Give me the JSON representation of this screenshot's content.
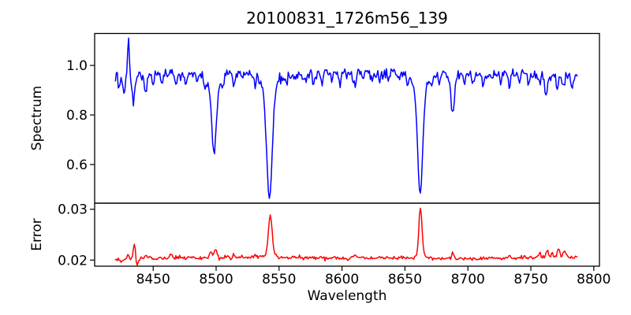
{
  "figure": {
    "title": "20100831_1726m56_139",
    "background_color": "#ffffff",
    "text_color": "#000000",
    "axis_color": "#000000"
  },
  "chart_data": [
    {
      "id": "spectrum-panel",
      "type": "line",
      "series_name": "Spectrum",
      "line_color": "#0000ff",
      "ylabel": "Spectrum",
      "xlim": [
        8403.5,
        8804.5
      ],
      "ylim": [
        0.444,
        1.129
      ],
      "yticks": [
        {
          "value": 1.0,
          "label": "1.0"
        },
        {
          "value": 0.8,
          "label": "0.8"
        },
        {
          "value": 0.6,
          "label": "0.6"
        }
      ],
      "x_start": 8420,
      "x_end": 8787,
      "x_step": 0.75,
      "continuum": [
        [
          8420,
          0.945
        ],
        [
          8442,
          0.958
        ],
        [
          8475,
          0.962
        ],
        [
          8520,
          0.968
        ],
        [
          8558,
          0.962
        ],
        [
          8600,
          0.972
        ],
        [
          8645,
          0.972
        ],
        [
          8700,
          0.958
        ],
        [
          8730,
          0.968
        ],
        [
          8762,
          0.96
        ],
        [
          8787,
          0.945
        ]
      ],
      "absorption_lines": [
        [
          8423,
          0.04,
          0.7
        ],
        [
          8427,
          0.05,
          0.9
        ],
        [
          8434.5,
          0.09,
          1.1
        ],
        [
          8444,
          0.07,
          0.9
        ],
        [
          8450,
          0.03,
          0.7
        ],
        [
          8457,
          0.04,
          0.7
        ],
        [
          8468,
          0.05,
          0.9
        ],
        [
          8476,
          0.035,
          0.7
        ],
        [
          8485,
          0.03,
          0.7
        ],
        [
          8491,
          0.04,
          0.8
        ],
        [
          8498.3,
          0.26,
          1.8
        ],
        [
          8498.3,
          0.05,
          5
        ],
        [
          8505,
          0.04,
          0.8
        ],
        [
          8514,
          0.05,
          0.9
        ],
        [
          8521,
          0.035,
          0.7
        ],
        [
          8531,
          0.05,
          0.9
        ],
        [
          8542.3,
          0.44,
          2.2
        ],
        [
          8542.3,
          0.055,
          6
        ],
        [
          8556,
          0.04,
          0.8
        ],
        [
          8563,
          0.03,
          0.7
        ],
        [
          8571,
          0.035,
          0.7
        ],
        [
          8577,
          0.03,
          0.7
        ],
        [
          8584,
          0.055,
          0.9
        ],
        [
          8592,
          0.035,
          0.7
        ],
        [
          8598,
          0.045,
          0.8
        ],
        [
          8604,
          0.03,
          0.7
        ],
        [
          8610,
          0.065,
          1.0
        ],
        [
          8617,
          0.035,
          0.7
        ],
        [
          8624,
          0.045,
          0.8
        ],
        [
          8630,
          0.03,
          0.7
        ],
        [
          8637,
          0.04,
          0.8
        ],
        [
          8645,
          0.035,
          0.7
        ],
        [
          8652,
          0.03,
          0.7
        ],
        [
          8662.1,
          0.435,
          2.0
        ],
        [
          8662.1,
          0.055,
          5.5
        ],
        [
          8671,
          0.04,
          0.8
        ],
        [
          8677,
          0.035,
          0.7
        ],
        [
          8688,
          0.15,
          1.3
        ],
        [
          8697,
          0.04,
          0.7
        ],
        [
          8704,
          0.03,
          0.7
        ],
        [
          8712,
          0.045,
          0.8
        ],
        [
          8719,
          0.03,
          0.7
        ],
        [
          8726,
          0.035,
          0.7
        ],
        [
          8733,
          0.055,
          1.0
        ],
        [
          8741,
          0.04,
          0.8
        ],
        [
          8748,
          0.03,
          0.7
        ],
        [
          8757,
          0.05,
          0.9
        ],
        [
          8762,
          0.08,
          1.1
        ],
        [
          8771,
          0.045,
          0.9
        ],
        [
          8776,
          0.04,
          0.8
        ],
        [
          8783,
          0.05,
          0.9
        ]
      ],
      "emission_spikes": [
        [
          8430.2,
          0.145,
          0.7
        ]
      ],
      "noise_sigma": 0.0115,
      "noise_seed": 13
    },
    {
      "id": "error-panel",
      "type": "line",
      "series_name": "Error",
      "line_color": "#ff0000",
      "xlabel": "Wavelength",
      "ylabel": "Error",
      "xlim": [
        8403.5,
        8804.5
      ],
      "ylim": [
        0.0188,
        0.0312
      ],
      "yticks": [
        {
          "value": 0.03,
          "label": "0.03"
        },
        {
          "value": 0.02,
          "label": "0.02"
        }
      ],
      "xticks": [
        {
          "value": 8450,
          "label": "8450"
        },
        {
          "value": 8500,
          "label": "8500"
        },
        {
          "value": 8550,
          "label": "8550"
        },
        {
          "value": 8600,
          "label": "8600"
        },
        {
          "value": 8650,
          "label": "8650"
        },
        {
          "value": 8700,
          "label": "8700"
        },
        {
          "value": 8750,
          "label": "8750"
        },
        {
          "value": 8800,
          "label": "8800"
        }
      ],
      "x_start": 8420,
      "x_end": 8787,
      "x_step": 0.75,
      "baseline": [
        [
          8420,
          0.02
        ],
        [
          8448,
          0.0204
        ],
        [
          8520,
          0.0205
        ],
        [
          8600,
          0.0204
        ],
        [
          8660,
          0.0204
        ],
        [
          8700,
          0.0203
        ],
        [
          8735,
          0.0204
        ],
        [
          8770,
          0.0206
        ],
        [
          8787,
          0.0206
        ]
      ],
      "peaks": [
        [
          8430,
          0.0008,
          0.8
        ],
        [
          8435,
          0.0031,
          0.8
        ],
        [
          8444,
          0.0006,
          0.8
        ],
        [
          8464,
          0.0009,
          0.9
        ],
        [
          8496,
          0.0012,
          0.9
        ],
        [
          8499.5,
          0.0019,
          1.0
        ],
        [
          8514,
          0.0004,
          0.8
        ],
        [
          8531,
          0.0007,
          0.9
        ],
        [
          8543,
          0.0075,
          1.4
        ],
        [
          8543,
          0.001,
          3.5
        ],
        [
          8584,
          0.0004,
          0.8
        ],
        [
          8610,
          0.0006,
          0.9
        ],
        [
          8662.3,
          0.0092,
          1.2
        ],
        [
          8662.3,
          0.0008,
          3.0
        ],
        [
          8688,
          0.0013,
          0.9
        ],
        [
          8733,
          0.0005,
          0.9
        ],
        [
          8745,
          0.0004,
          0.8
        ],
        [
          8757,
          0.0009,
          1.0
        ],
        [
          8763,
          0.0013,
          1.0
        ],
        [
          8767,
          0.0009,
          0.8
        ],
        [
          8772,
          0.0016,
          1.0
        ],
        [
          8777,
          0.0009,
          1.4
        ]
      ],
      "dips": [
        [
          8425,
          0.0004,
          0.8
        ],
        [
          8437.5,
          0.001,
          0.9
        ]
      ],
      "noise_sigma": 0.00018,
      "noise_seed": 31
    }
  ]
}
